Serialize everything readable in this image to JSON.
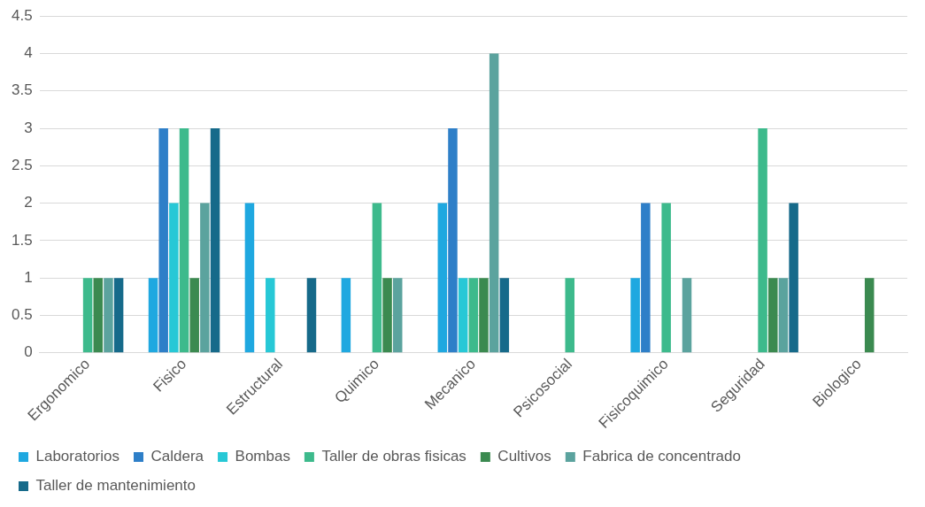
{
  "chart_data": {
    "type": "bar",
    "categories": [
      "Ergonomico",
      "Fisico",
      "Estructural",
      "Quimico",
      "Mecanico",
      "Psicosocial",
      "Fisicoquimico",
      "Seguridad",
      "Biologico"
    ],
    "series": [
      {
        "name": "Laboratorios",
        "color": "#1fa8e0",
        "values": [
          0,
          1,
          2,
          1,
          2,
          0,
          1,
          0,
          0
        ]
      },
      {
        "name": "Caldera",
        "color": "#2e7fc8",
        "values": [
          0,
          3,
          0,
          0,
          3,
          0,
          2,
          0,
          0
        ]
      },
      {
        "name": "Bombas",
        "color": "#27c8d6",
        "values": [
          0,
          2,
          1,
          0,
          1,
          0,
          0,
          0,
          0
        ]
      },
      {
        "name": "Taller de obras fisicas",
        "color": "#3dba8c",
        "values": [
          1,
          3,
          0,
          2,
          1,
          1,
          2,
          3,
          0
        ]
      },
      {
        "name": "Cultivos",
        "color": "#3b8a50",
        "values": [
          1,
          1,
          0,
          1,
          1,
          0,
          0,
          1,
          1
        ]
      },
      {
        "name": "Fabrica de concentrado",
        "color": "#5ba39e",
        "values": [
          1,
          2,
          0,
          1,
          4,
          0,
          1,
          1,
          0
        ]
      },
      {
        "name": "Taller de mantenimiento",
        "color": "#166a8a",
        "values": [
          1,
          3,
          1,
          0,
          1,
          0,
          0,
          2,
          0
        ]
      }
    ],
    "ylim": [
      0,
      4.5
    ],
    "yticks": [
      0,
      0.5,
      1,
      1.5,
      2,
      2.5,
      3,
      3.5,
      4,
      4.5
    ],
    "grid": "y",
    "legend": "bottom"
  }
}
